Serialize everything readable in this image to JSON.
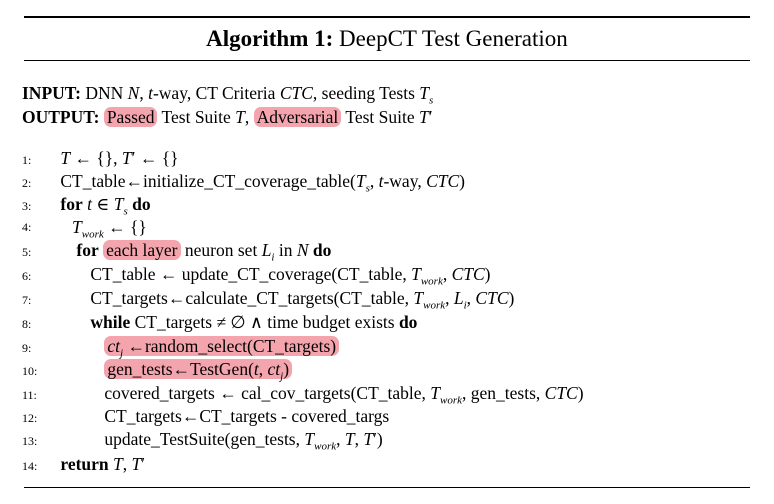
{
  "title": {
    "prefix": "Algorithm 1:",
    "name": "DeepCT Test Generation"
  },
  "input": {
    "label": "INPUT:",
    "text": "DNN N, t-way, CT Criteria CTC, seeding Tests Ts"
  },
  "output": {
    "label": "OUTPUT:",
    "passed": "Passed",
    "mid": "Test Suite T,",
    "adversarial": "Adversarial",
    "tail": "Test Suite T′"
  },
  "lines": [
    {
      "n": "1:",
      "text": "T ← {}, T′ ← {}"
    },
    {
      "n": "2:",
      "text": "CT_table←initialize_CT_coverage_table(Ts, t-way, CTC)"
    },
    {
      "n": "3:",
      "kw1": "for",
      "text": "t ∈ Ts",
      "kw2": "do"
    },
    {
      "n": "4:",
      "text": "Twork ← {}"
    },
    {
      "n": "5:",
      "kw1": "for",
      "hl": "each layer",
      "text": "neuron set Li in N",
      "kw2": "do"
    },
    {
      "n": "6:",
      "text": "CT_table ← update_CT_coverage(CT_table, Twork, CTC)"
    },
    {
      "n": "7:",
      "text": "CT_targets←calculate_CT_targets(CT_table, Twork, Li, CTC)"
    },
    {
      "n": "8:",
      "kw1": "while",
      "text": "CT_targets ≠ ∅ ∧ time budget exists",
      "kw2": "do"
    },
    {
      "n": "9:",
      "text": "ctj ←random_select(CT_targets)"
    },
    {
      "n": "10:",
      "text": "gen_tests←TestGen(t, ctj)"
    },
    {
      "n": "11:",
      "text": "covered_targets ← cal_cov_targets(CT_table, Twork, gen_tests, CTC)"
    },
    {
      "n": "12:",
      "text": "CT_targets←CT_targets - covered_targs"
    },
    {
      "n": "13:",
      "text": "update_TestSuite(gen_tests, Twork, T, T′)"
    },
    {
      "n": "14:",
      "kw1": "return",
      "text": "T, T′"
    }
  ],
  "colors": {
    "highlight": "#f3a4ad"
  }
}
